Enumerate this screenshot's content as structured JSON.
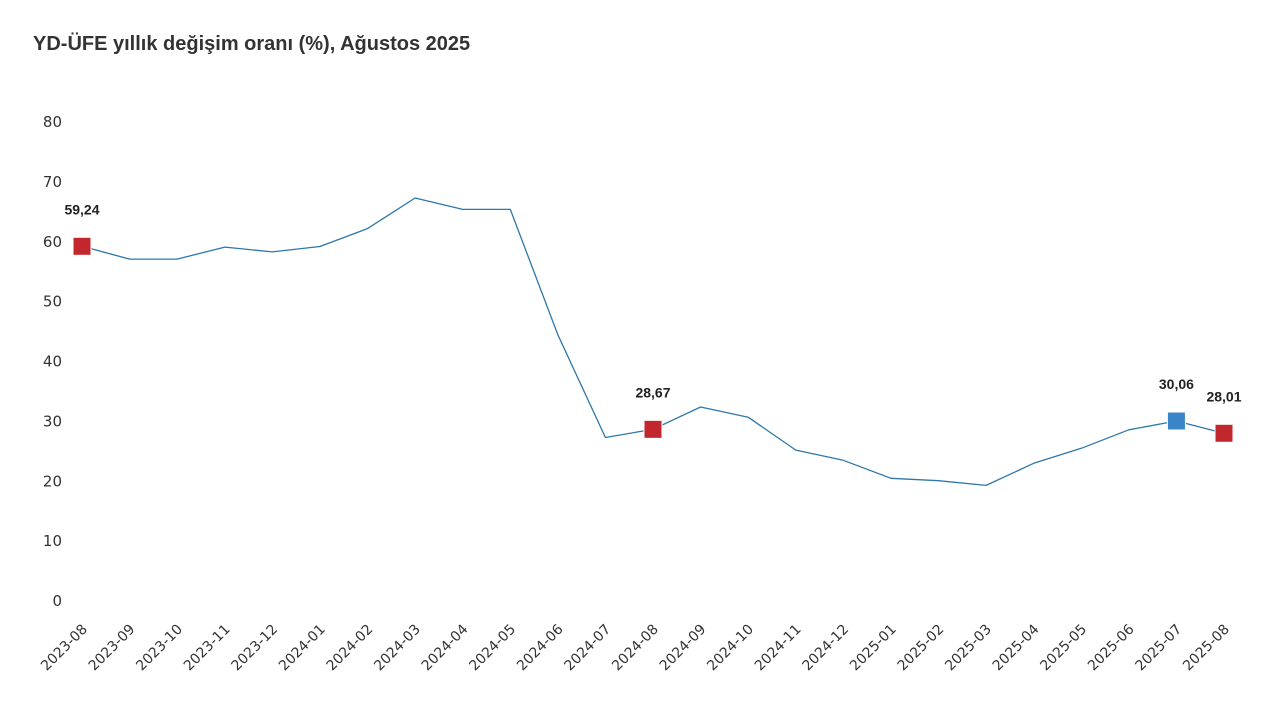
{
  "chart_data": {
    "type": "line",
    "title": "YD-ÜFE yıllık değişim oranı (%), Ağustos 2025",
    "xlabel": "",
    "ylabel": "",
    "ylim": [
      0,
      80
    ],
    "yticks": [
      0,
      10,
      20,
      30,
      40,
      50,
      60,
      70,
      80
    ],
    "grid": false,
    "categories": [
      "2023-08",
      "2023-09",
      "2023-10",
      "2023-11",
      "2023-12",
      "2024-01",
      "2024-02",
      "2024-03",
      "2024-04",
      "2024-05",
      "2024-06",
      "2024-07",
      "2024-08",
      "2024-09",
      "2024-10",
      "2024-11",
      "2024-12",
      "2025-01",
      "2025-02",
      "2025-03",
      "2025-04",
      "2025-05",
      "2025-06",
      "2025-07",
      "2025-08"
    ],
    "series": [
      {
        "values": [
          59.24,
          57.1,
          57.1,
          59.1,
          58.3,
          59.2,
          62.2,
          67.3,
          65.4,
          65.4,
          44.5,
          27.3,
          28.67,
          32.4,
          30.7,
          25.2,
          23.5,
          20.5,
          20.1,
          19.3,
          23.0,
          25.5,
          28.6,
          30.06,
          28.01
        ],
        "color": "#2e77a8"
      }
    ],
    "markers": [
      {
        "index": 0,
        "label": "59,24",
        "color": "#c1272d"
      },
      {
        "index": 12,
        "label": "28,67",
        "color": "#c1272d"
      },
      {
        "index": 23,
        "label": "30,06",
        "color": "#3a84c8"
      },
      {
        "index": 24,
        "label": "28,01",
        "color": "#c1272d"
      }
    ]
  }
}
